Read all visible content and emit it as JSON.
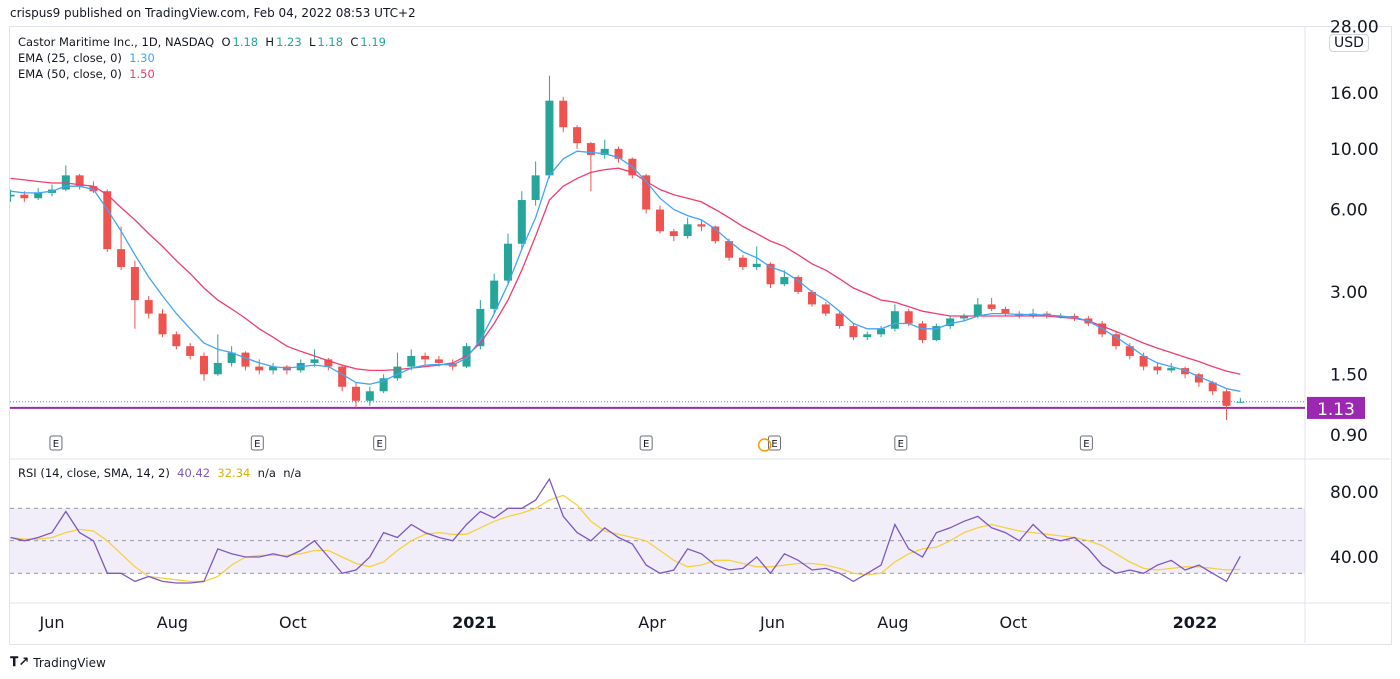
{
  "header": {
    "published": "crispus9 published on TradingView.com, Feb 04, 2022 08:53 UTC+2"
  },
  "legend": {
    "symbol": "Castor Maritime Inc., 1D, NASDAQ",
    "o_label": "O",
    "o": "1.18",
    "h_label": "H",
    "h": "1.23",
    "l_label": "L",
    "l": "1.18",
    "c_label": "C",
    "c": "1.19",
    "ema25_label": "EMA (25, close, 0)",
    "ema25_value": "1.30",
    "ema50_label": "EMA (50, close, 0)",
    "ema50_value": "1.50"
  },
  "rsi_legend": {
    "label": "RSI (14, close, SMA, 14, 2)",
    "rsi": "40.42",
    "sma": "32.34",
    "na1": "n/a",
    "na2": "n/a"
  },
  "currency": "USD",
  "footer": {
    "brand": "TradingView"
  },
  "colors": {
    "up": "#26a69a",
    "down": "#ef5350",
    "ema25": "#42a5f5",
    "ema50": "#f23d6d",
    "rsi": "#7e57c2",
    "rsi_sma": "#f5d142",
    "hline": "#9c27b0",
    "band": "#7e57c2"
  },
  "chart_data": [
    {
      "type": "candlestick",
      "scale": "log",
      "y_ticks": [
        "28.00",
        "16.00",
        "10.00",
        "6.00",
        "3.00",
        "1.50",
        "0.90"
      ],
      "x_ticks": [
        {
          "date": "2020-06-01",
          "label": "Jun",
          "bold": false
        },
        {
          "date": "2020-08-01",
          "label": "Aug",
          "bold": false
        },
        {
          "date": "2020-10-01",
          "label": "Oct",
          "bold": false
        },
        {
          "date": "2021-01-01",
          "label": "2021",
          "bold": true
        },
        {
          "date": "2021-04-01",
          "label": "Apr",
          "bold": false
        },
        {
          "date": "2021-06-01",
          "label": "Jun",
          "bold": false
        },
        {
          "date": "2021-08-01",
          "label": "Aug",
          "bold": false
        },
        {
          "date": "2021-10-01",
          "label": "Oct",
          "bold": false
        },
        {
          "date": "2022-01-01",
          "label": "2022",
          "bold": true
        }
      ],
      "horizontal_line": {
        "value": 1.13,
        "label": "1.13"
      },
      "last_price": 1.19,
      "earnings_markers": {
        "label": "E",
        "dates": [
          "2020-06-03",
          "2020-09-13",
          "2020-11-14",
          "2021-03-29",
          "2021-06-02",
          "2021-08-05",
          "2021-11-07"
        ]
      },
      "event_marker_dates": [
        "2021-05-28"
      ],
      "candles": [
        [
          "2020-05-11",
          6.7,
          7.1,
          6.4,
          6.8
        ],
        [
          "2020-05-18",
          6.8,
          7.0,
          6.4,
          6.6
        ],
        [
          "2020-05-25",
          6.6,
          7.2,
          6.5,
          6.9
        ],
        [
          "2020-06-01",
          6.9,
          7.4,
          6.7,
          7.1
        ],
        [
          "2020-06-08",
          7.1,
          8.7,
          7.0,
          8.0
        ],
        [
          "2020-06-15",
          8.0,
          8.1,
          7.1,
          7.3
        ],
        [
          "2020-06-22",
          7.3,
          7.6,
          6.9,
          7.0
        ],
        [
          "2020-06-29",
          7.0,
          7.1,
          4.2,
          4.3
        ],
        [
          "2020-07-06",
          4.3,
          5.2,
          3.6,
          3.7
        ],
        [
          "2020-07-13",
          3.7,
          3.9,
          2.2,
          2.8
        ],
        [
          "2020-07-20",
          2.8,
          2.9,
          2.4,
          2.5
        ],
        [
          "2020-07-27",
          2.5,
          2.6,
          2.05,
          2.1
        ],
        [
          "2020-08-03",
          2.1,
          2.15,
          1.85,
          1.9
        ],
        [
          "2020-08-10",
          1.9,
          1.95,
          1.7,
          1.75
        ],
        [
          "2020-08-17",
          1.75,
          1.8,
          1.42,
          1.5
        ],
        [
          "2020-08-24",
          1.5,
          2.1,
          1.48,
          1.65
        ],
        [
          "2020-08-31",
          1.65,
          1.9,
          1.6,
          1.8
        ],
        [
          "2020-09-07",
          1.8,
          1.82,
          1.55,
          1.6
        ],
        [
          "2020-09-14",
          1.6,
          1.7,
          1.5,
          1.55
        ],
        [
          "2020-09-21",
          1.55,
          1.65,
          1.5,
          1.6
        ],
        [
          "2020-09-28",
          1.6,
          1.62,
          1.5,
          1.55
        ],
        [
          "2020-10-05",
          1.55,
          1.7,
          1.52,
          1.65
        ],
        [
          "2020-10-12",
          1.65,
          1.85,
          1.6,
          1.7
        ],
        [
          "2020-10-19",
          1.7,
          1.72,
          1.55,
          1.6
        ],
        [
          "2020-10-26",
          1.6,
          1.62,
          1.3,
          1.35
        ],
        [
          "2020-11-02",
          1.35,
          1.4,
          1.13,
          1.2
        ],
        [
          "2020-11-09",
          1.2,
          1.35,
          1.15,
          1.3
        ],
        [
          "2020-11-16",
          1.3,
          1.5,
          1.28,
          1.45
        ],
        [
          "2020-11-23",
          1.45,
          1.8,
          1.42,
          1.6
        ],
        [
          "2020-11-30",
          1.6,
          1.85,
          1.55,
          1.75
        ],
        [
          "2020-12-07",
          1.75,
          1.8,
          1.62,
          1.7
        ],
        [
          "2020-12-14",
          1.7,
          1.75,
          1.6,
          1.65
        ],
        [
          "2020-12-21",
          1.65,
          1.7,
          1.55,
          1.6
        ],
        [
          "2020-12-28",
          1.6,
          1.95,
          1.58,
          1.9
        ],
        [
          "2021-01-04",
          1.9,
          2.8,
          1.85,
          2.6
        ],
        [
          "2021-01-11",
          2.6,
          3.5,
          2.5,
          3.3
        ],
        [
          "2021-01-18",
          3.3,
          4.9,
          3.2,
          4.5
        ],
        [
          "2021-01-25",
          4.5,
          7.0,
          4.3,
          6.5
        ],
        [
          "2021-02-01",
          6.5,
          9.0,
          6.2,
          8.0
        ],
        [
          "2021-02-08",
          8.0,
          18.5,
          7.8,
          15.0
        ],
        [
          "2021-02-15",
          15.0,
          15.5,
          11.5,
          12.0
        ],
        [
          "2021-02-22",
          12.0,
          12.2,
          10.0,
          10.5
        ],
        [
          "2021-03-01",
          10.5,
          10.6,
          7.0,
          9.5
        ],
        [
          "2021-03-08",
          9.5,
          10.8,
          9.2,
          10.0
        ],
        [
          "2021-03-15",
          10.0,
          10.2,
          8.9,
          9.2
        ],
        [
          "2021-03-22",
          9.2,
          9.3,
          7.8,
          8.0
        ],
        [
          "2021-03-29",
          8.0,
          8.1,
          5.8,
          6.0
        ],
        [
          "2021-04-05",
          6.0,
          6.2,
          4.9,
          5.0
        ],
        [
          "2021-04-12",
          5.0,
          5.1,
          4.6,
          4.8
        ],
        [
          "2021-04-19",
          4.8,
          5.6,
          4.7,
          5.3
        ],
        [
          "2021-04-26",
          5.3,
          5.5,
          5.0,
          5.2
        ],
        [
          "2021-05-03",
          5.2,
          5.25,
          4.5,
          4.6
        ],
        [
          "2021-05-10",
          4.6,
          4.7,
          3.9,
          4.0
        ],
        [
          "2021-05-17",
          4.0,
          4.1,
          3.6,
          3.7
        ],
        [
          "2021-05-24",
          3.7,
          4.4,
          3.6,
          3.8
        ],
        [
          "2021-05-31",
          3.8,
          3.85,
          3.1,
          3.2
        ],
        [
          "2021-06-07",
          3.2,
          3.6,
          3.15,
          3.4
        ],
        [
          "2021-06-14",
          3.4,
          3.45,
          2.95,
          3.0
        ],
        [
          "2021-06-21",
          3.0,
          3.05,
          2.65,
          2.7
        ],
        [
          "2021-06-28",
          2.7,
          2.75,
          2.45,
          2.5
        ],
        [
          "2021-07-05",
          2.5,
          2.55,
          2.2,
          2.25
        ],
        [
          "2021-07-12",
          2.25,
          2.3,
          2.0,
          2.05
        ],
        [
          "2021-07-19",
          2.05,
          2.15,
          2.0,
          2.1
        ],
        [
          "2021-07-26",
          2.1,
          2.25,
          2.05,
          2.2
        ],
        [
          "2021-08-02",
          2.2,
          2.7,
          2.15,
          2.55
        ],
        [
          "2021-08-09",
          2.55,
          2.6,
          2.25,
          2.3
        ],
        [
          "2021-08-16",
          2.3,
          2.35,
          1.95,
          2.0
        ],
        [
          "2021-08-23",
          2.0,
          2.3,
          1.98,
          2.25
        ],
        [
          "2021-08-30",
          2.25,
          2.45,
          2.2,
          2.4
        ],
        [
          "2021-09-06",
          2.4,
          2.5,
          2.35,
          2.45
        ],
        [
          "2021-09-13",
          2.45,
          2.85,
          2.4,
          2.7
        ],
        [
          "2021-09-20",
          2.7,
          2.85,
          2.55,
          2.6
        ],
        [
          "2021-09-27",
          2.6,
          2.65,
          2.45,
          2.5
        ],
        [
          "2021-10-04",
          2.5,
          2.55,
          2.4,
          2.45
        ],
        [
          "2021-10-11",
          2.45,
          2.6,
          2.4,
          2.5
        ],
        [
          "2021-10-18",
          2.5,
          2.55,
          2.4,
          2.45
        ],
        [
          "2021-10-25",
          2.45,
          2.5,
          2.4,
          2.45
        ],
        [
          "2021-11-01",
          2.45,
          2.5,
          2.35,
          2.4
        ],
        [
          "2021-11-08",
          2.4,
          2.45,
          2.25,
          2.3
        ],
        [
          "2021-11-15",
          2.3,
          2.35,
          2.05,
          2.1
        ],
        [
          "2021-11-22",
          2.1,
          2.15,
          1.85,
          1.9
        ],
        [
          "2021-11-29",
          1.9,
          1.95,
          1.7,
          1.75
        ],
        [
          "2021-12-06",
          1.75,
          1.8,
          1.55,
          1.6
        ],
        [
          "2021-12-13",
          1.6,
          1.65,
          1.5,
          1.55
        ],
        [
          "2021-12-20",
          1.55,
          1.65,
          1.52,
          1.58
        ],
        [
          "2021-12-27",
          1.58,
          1.6,
          1.45,
          1.5
        ],
        [
          "2022-01-03",
          1.5,
          1.52,
          1.35,
          1.4
        ],
        [
          "2022-01-10",
          1.4,
          1.42,
          1.26,
          1.3
        ],
        [
          "2022-01-17",
          1.3,
          1.32,
          1.02,
          1.15
        ],
        [
          "2022-01-24",
          1.18,
          1.23,
          1.18,
          1.19
        ]
      ],
      "ema25": [
        7.0,
        6.9,
        6.9,
        7.0,
        7.3,
        7.3,
        7.1,
        6.0,
        5.0,
        4.1,
        3.4,
        2.9,
        2.5,
        2.2,
        1.95,
        1.85,
        1.8,
        1.72,
        1.65,
        1.6,
        1.58,
        1.6,
        1.62,
        1.6,
        1.5,
        1.4,
        1.38,
        1.42,
        1.5,
        1.58,
        1.62,
        1.63,
        1.62,
        1.72,
        2.0,
        2.5,
        3.2,
        4.3,
        5.6,
        8.0,
        9.2,
        9.8,
        9.7,
        9.6,
        9.3,
        8.6,
        7.6,
        6.6,
        6.0,
        5.7,
        5.5,
        5.1,
        4.6,
        4.2,
        4.0,
        3.7,
        3.55,
        3.3,
        3.0,
        2.8,
        2.55,
        2.3,
        2.2,
        2.2,
        2.3,
        2.3,
        2.2,
        2.2,
        2.3,
        2.35,
        2.45,
        2.5,
        2.5,
        2.48,
        2.48,
        2.47,
        2.45,
        2.42,
        2.35,
        2.2,
        2.05,
        1.9,
        1.75,
        1.65,
        1.6,
        1.55,
        1.47,
        1.4,
        1.33,
        1.3
      ],
      "ema50": [
        7.8,
        7.7,
        7.6,
        7.5,
        7.5,
        7.4,
        7.3,
        6.8,
        6.1,
        5.5,
        4.9,
        4.4,
        3.9,
        3.5,
        3.1,
        2.8,
        2.6,
        2.4,
        2.2,
        2.05,
        1.9,
        1.82,
        1.75,
        1.68,
        1.62,
        1.57,
        1.55,
        1.55,
        1.56,
        1.58,
        1.6,
        1.62,
        1.65,
        1.75,
        1.95,
        2.3,
        2.8,
        3.6,
        4.8,
        6.5,
        7.3,
        7.8,
        8.2,
        8.4,
        8.5,
        8.2,
        7.6,
        7.1,
        6.8,
        6.6,
        6.4,
        6.0,
        5.6,
        5.2,
        4.9,
        4.6,
        4.4,
        4.1,
        3.8,
        3.6,
        3.35,
        3.1,
        2.95,
        2.8,
        2.75,
        2.65,
        2.55,
        2.5,
        2.45,
        2.45,
        2.45,
        2.45,
        2.45,
        2.45,
        2.45,
        2.45,
        2.42,
        2.4,
        2.35,
        2.25,
        2.15,
        2.05,
        1.95,
        1.87,
        1.8,
        1.73,
        1.67,
        1.6,
        1.54,
        1.5
      ]
    },
    {
      "type": "line",
      "y_ticks": [
        "80.00",
        "40.00"
      ],
      "band": [
        30,
        70
      ],
      "midline": 50,
      "rsi": [
        52,
        50,
        52,
        55,
        68,
        55,
        50,
        30,
        30,
        25,
        28,
        25,
        24,
        24,
        25,
        45,
        42,
        40,
        40,
        42,
        40,
        44,
        50,
        40,
        30,
        32,
        40,
        55,
        52,
        60,
        55,
        52,
        50,
        60,
        68,
        64,
        70,
        70,
        75,
        88,
        65,
        55,
        50,
        58,
        52,
        48,
        35,
        30,
        32,
        45,
        42,
        35,
        32,
        33,
        40,
        30,
        42,
        38,
        32,
        33,
        30,
        25,
        30,
        35,
        60,
        45,
        40,
        55,
        58,
        62,
        65,
        58,
        55,
        50,
        60,
        52,
        50,
        52,
        45,
        35,
        30,
        32,
        30,
        35,
        38,
        32,
        35,
        30,
        25,
        40.42
      ],
      "rsi_sma": [
        52,
        51,
        51,
        52,
        55,
        57,
        56,
        50,
        42,
        34,
        28,
        27,
        26,
        25,
        25,
        28,
        35,
        40,
        41,
        41,
        41,
        42,
        44,
        44,
        40,
        36,
        34,
        37,
        44,
        50,
        54,
        55,
        54,
        54,
        58,
        62,
        65,
        67,
        70,
        75,
        78,
        72,
        62,
        56,
        54,
        52,
        50,
        44,
        38,
        34,
        35,
        38,
        38,
        36,
        34,
        34,
        35,
        36,
        36,
        35,
        33,
        30,
        29,
        30,
        37,
        42,
        45,
        46,
        50,
        55,
        58,
        60,
        58,
        56,
        55,
        54,
        53,
        52,
        50,
        47,
        42,
        37,
        33,
        32,
        33,
        34,
        34,
        33,
        32,
        32.34
      ]
    }
  ]
}
